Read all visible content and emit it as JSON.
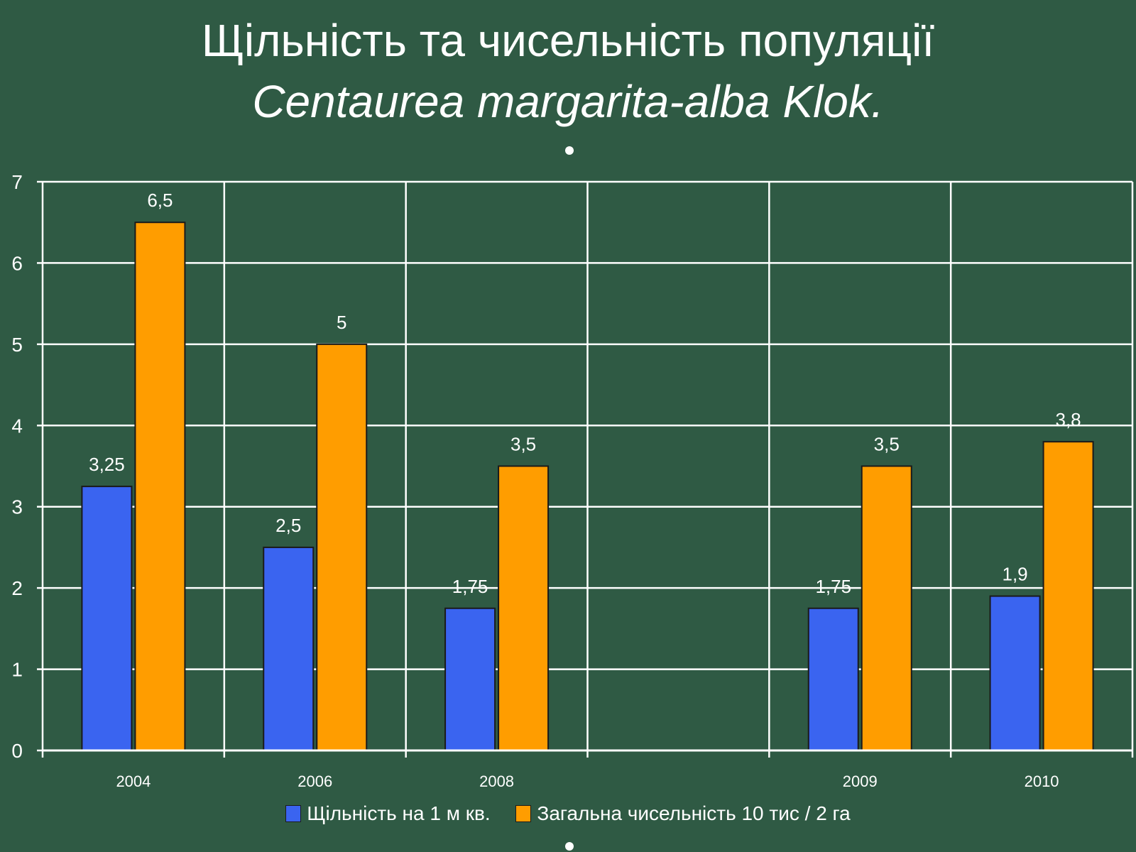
{
  "title": {
    "line1": "Щільність та чисельність популяції",
    "line2": "Centaurea margarita-alba Klok."
  },
  "colors": {
    "background": "#2f5a44",
    "grid": "#ffffff",
    "series_density": "#3a64f0",
    "series_total": "#ff9d00"
  },
  "chart_data": {
    "type": "bar",
    "categories": [
      "2004",
      "2006",
      "2008",
      "",
      "2009",
      "2010"
    ],
    "series": [
      {
        "name": "Щільність на 1 м кв.",
        "values": [
          3.25,
          2.5,
          1.75,
          null,
          1.75,
          1.9
        ],
        "labels": [
          "3,25",
          "2,5",
          "1,75",
          "",
          "1,75",
          "1,9"
        ]
      },
      {
        "name": "Загальна чисельність 10 тис / 2 га",
        "values": [
          6.5,
          5,
          3.5,
          null,
          3.5,
          3.8
        ],
        "labels": [
          "6,5",
          "5",
          "3,5",
          "",
          "3,5",
          "3,8"
        ]
      }
    ],
    "yticks": [
      "0",
      "1",
      "2",
      "3",
      "4",
      "5",
      "6",
      "7"
    ],
    "ylim": [
      0,
      7
    ],
    "grid": true,
    "legend_position": "bottom"
  }
}
